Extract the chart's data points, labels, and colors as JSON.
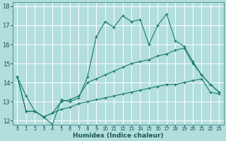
{
  "title": "",
  "xlabel": "Humidex (Indice chaleur)",
  "bg_color": "#b2dede",
  "grid_color": "#ffffff",
  "line_color": "#1a7a6e",
  "xlim": [
    -0.5,
    23.5
  ],
  "ylim": [
    11.8,
    18.2
  ],
  "xticks": [
    0,
    1,
    2,
    3,
    4,
    5,
    6,
    7,
    8,
    9,
    10,
    11,
    12,
    13,
    14,
    15,
    16,
    17,
    18,
    19,
    20,
    21,
    22,
    23
  ],
  "yticks": [
    12,
    13,
    14,
    15,
    16,
    17,
    18
  ],
  "series": [
    [
      14.3,
      13.3,
      12.5,
      12.2,
      11.8,
      13.1,
      13.0,
      13.2,
      14.3,
      16.4,
      17.2,
      16.9,
      17.5,
      17.2,
      17.3,
      16.0,
      17.0,
      17.6,
      16.2,
      15.9,
      15.1,
      14.4,
      13.9,
      13.5
    ],
    [
      14.3,
      12.5,
      12.5,
      12.2,
      12.4,
      13.0,
      13.1,
      13.3,
      14.0,
      14.2,
      14.4,
      14.6,
      14.8,
      15.0,
      15.1,
      15.2,
      15.4,
      15.5,
      15.7,
      15.8,
      15.0,
      14.4,
      13.9,
      13.5
    ],
    [
      14.3,
      12.5,
      12.5,
      12.2,
      12.4,
      12.6,
      12.7,
      12.9,
      13.0,
      13.1,
      13.2,
      13.3,
      13.4,
      13.5,
      13.6,
      13.7,
      13.8,
      13.9,
      13.9,
      14.0,
      14.1,
      14.2,
      13.5,
      13.4
    ]
  ]
}
